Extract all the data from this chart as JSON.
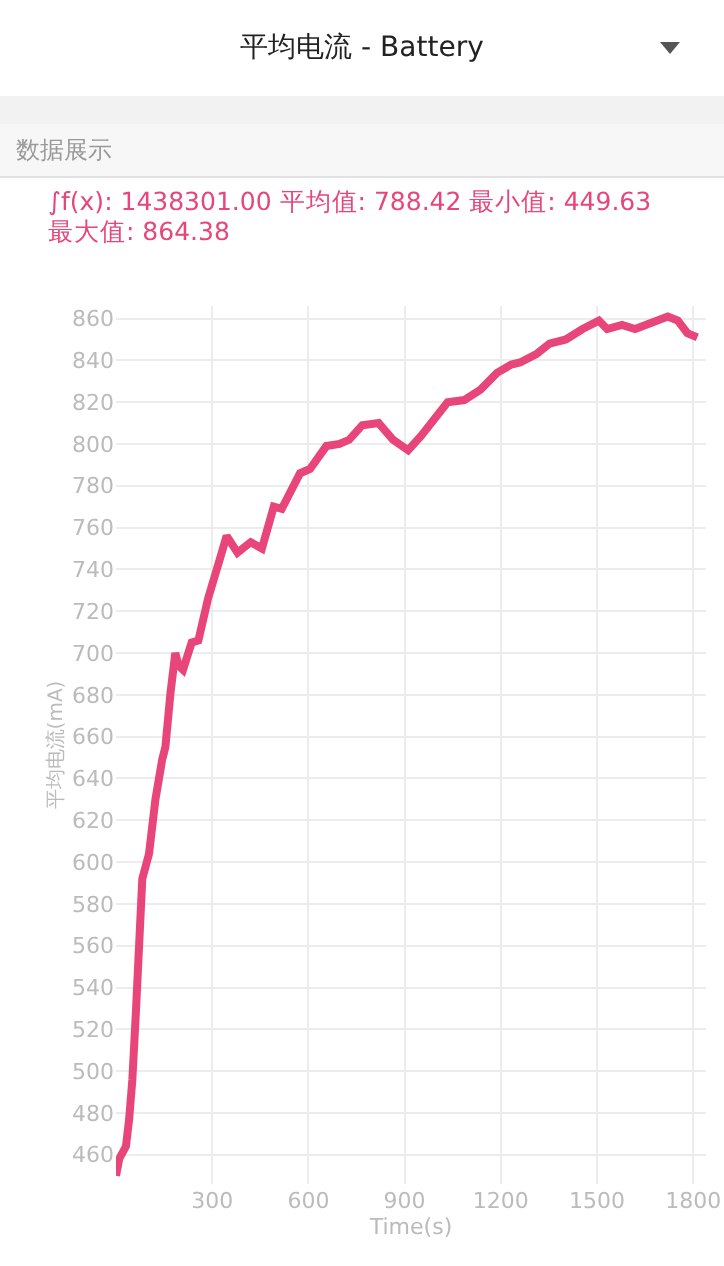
{
  "chart_data": {
    "type": "line",
    "title": "平均电流 - Battery",
    "subtitle": "数据展示",
    "annotations": [
      "∫f(x): 1438301.00 平均值: 788.42 最小值: 449.63 最大值: 864.38"
    ],
    "xlabel": "Time(s)",
    "ylabel": "平均电流(mA)",
    "x": [
      0,
      10,
      31,
      41,
      51,
      62,
      82,
      103,
      123,
      144,
      154,
      170,
      185,
      195,
      209,
      236,
      257,
      287,
      324,
      345,
      379,
      420,
      455,
      492,
      517,
      574,
      605,
      656,
      697,
      727,
      768,
      819,
      864,
      911,
      952,
      1034,
      1086,
      1137,
      1188,
      1233,
      1260,
      1311,
      1352,
      1403,
      1455,
      1506,
      1532,
      1578,
      1619,
      1670,
      1721,
      1752,
      1782,
      1813
    ],
    "series": [
      {
        "color": "#e8457a",
        "values": [
          450,
          458,
          464,
          477,
          496,
          528,
          592,
          604,
          630,
          649,
          655,
          681,
          700,
          694,
          692,
          705,
          706,
          726,
          745,
          756,
          748,
          753,
          750,
          770,
          769,
          786,
          788,
          799,
          800,
          802,
          809,
          810,
          802,
          797,
          804,
          820,
          821,
          826,
          834,
          838,
          839,
          843,
          848,
          850,
          855,
          859,
          855,
          857,
          855,
          858,
          861,
          859,
          853,
          851
        ]
      }
    ],
    "xlim": [
      0,
      1840
    ],
    "xticks": [
      300,
      600,
      900,
      1200,
      1500,
      1800
    ],
    "ylim": [
      446,
      866
    ],
    "yticks": [
      460,
      480,
      500,
      520,
      540,
      560,
      580,
      600,
      620,
      640,
      660,
      680,
      700,
      720,
      740,
      760,
      780,
      800,
      820,
      840,
      860
    ],
    "grid": true,
    "marker": "none",
    "line_style": "solid"
  }
}
